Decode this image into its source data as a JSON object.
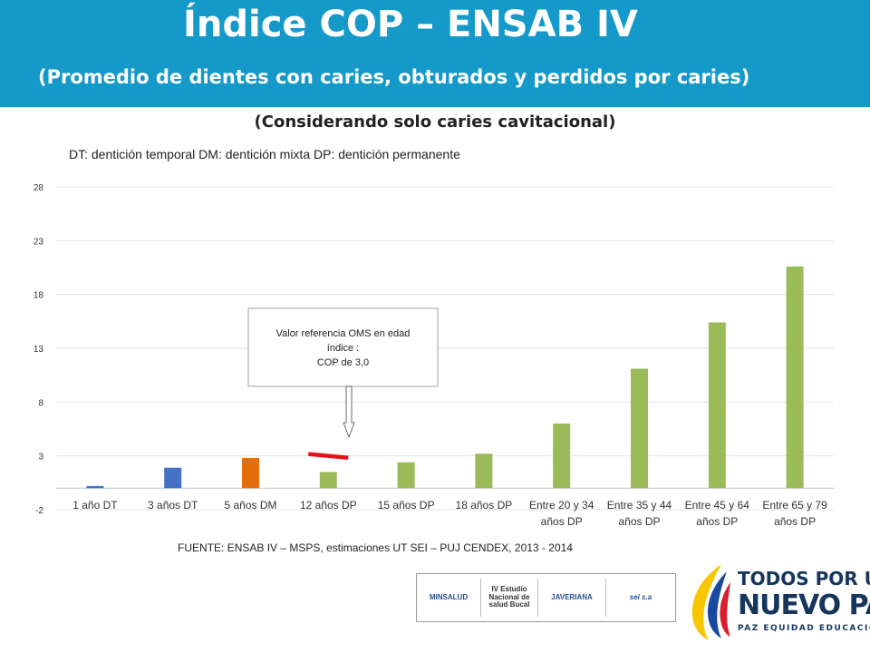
{
  "header": {
    "title": "Índice COP – ENSAB IV",
    "subtitle": "(Promedio de dientes con caries, obturados y perdidos por caries)"
  },
  "chart_subtitle": "(Considerando solo caries cavitacional)",
  "legend_note": "DT: dentición temporal   DM: dentición mixta  DP: dentición permanente",
  "source": "FUENTE: ENSAB IV – MSPS, estimaciones UT SEI – PUJ CENDEX, 2013 - 2014",
  "logos": {
    "minsalud": "MINSALUD",
    "estudio": "IV Estudio Nacional de salud Bucal",
    "javeriana": "JAVERIANA",
    "sei": "sei s.a"
  },
  "government": {
    "line1": "TODOS POR UN",
    "line2": "NUEVO PAÍS",
    "line3": "PAZ  EQUIDAD  EDUCACIÓN"
  },
  "chart_data": {
    "type": "bar",
    "categories": [
      "1 año DT",
      "3 años DT",
      "5 años DM",
      "12 años DP",
      "15 años DP",
      "18 años DP",
      "Entre 20 y 34 años DP",
      "Entre 35 y 44 años DP",
      "Entre 45 y 64 años DP",
      "Entre 65 y 79 años DP"
    ],
    "values": [
      0.2,
      1.9,
      2.8,
      1.5,
      2.4,
      3.2,
      6.0,
      11.1,
      15.4,
      20.6
    ],
    "bar_colors": [
      "#4472c4",
      "#4472c4",
      "#e46c0a",
      "#9bbb59",
      "#9bbb59",
      "#9bbb59",
      "#9bbb59",
      "#9bbb59",
      "#9bbb59",
      "#9bbb59"
    ],
    "yticks": [
      -2,
      3,
      8,
      13,
      18,
      23,
      28
    ],
    "ylim": [
      -2,
      28
    ],
    "grid": true,
    "reference": {
      "value": 3.0,
      "category": "12 años DP",
      "color": "#e8111a",
      "label_lines": [
        "Valor referencia OMS en edad",
        "índice :",
        "COP de 3,0"
      ]
    }
  }
}
